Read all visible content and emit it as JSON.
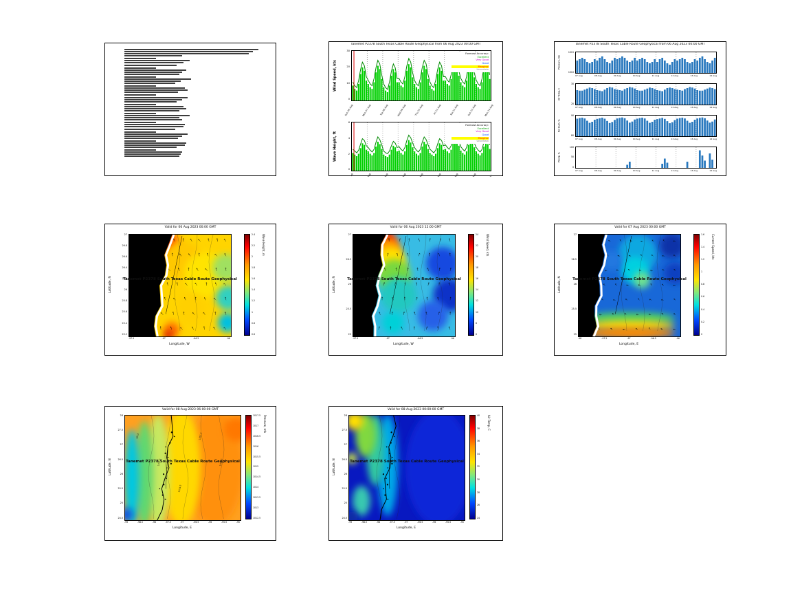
{
  "project_title": "Tanemet P2378 South Texas Cable Route Geophysical",
  "report": {
    "line_groups": [
      [
        0.93,
        0.89,
        0.86,
        0.4
      ],
      [
        0.22,
        0.45,
        0.41,
        0.36
      ],
      [
        0.22,
        0.43,
        0.4,
        0.38
      ],
      [
        0.22,
        0.46,
        0.39,
        0.35
      ],
      [
        0.22,
        0.42,
        0.44,
        0.37
      ],
      [
        0.22,
        0.44,
        0.4,
        0.36
      ],
      [
        0.22,
        0.41,
        0.43,
        0.38
      ],
      [
        0.22,
        0.45,
        0.38,
        0.4
      ],
      [
        0.22,
        0.42,
        0.41,
        0.35
      ],
      [
        0.22,
        0.44,
        0.4,
        0.37
      ],
      [
        0.22,
        0.43,
        0.42,
        0.36
      ],
      [
        0.22,
        0.4,
        0.39,
        0.38
      ]
    ]
  },
  "timeseries": {
    "title": "Tanemet P2378 South Texas Cable Route Geophysical from 06 Aug 2023 00:00 GMT",
    "legend_title": "Forecast Accuracy:",
    "legend_items": [
      {
        "label": "Excellent",
        "color": "#00a000"
      },
      {
        "label": "Very Good",
        "color": "#cc00cc"
      },
      {
        "label": "Good",
        "color": "#0055ff"
      },
      {
        "label": "Marginal",
        "color": "#ff0000",
        "bg": "#ffff00"
      },
      {
        "label": "Uncertain",
        "color": "#7f7f7f"
      }
    ],
    "day_labels": [
      "Sun 06 Aug",
      "Mon 07 Aug",
      "Tue 08 Aug",
      "Wed 09 Aug",
      "Thu 10 Aug",
      "Fri 11 Aug",
      "Sat 12 Aug",
      "Sun 13 Aug",
      "Mon 14 Aug"
    ]
  },
  "daily": {
    "title": "Tanemet P2378 South Texas Cable Route Geophysical from 06 Aug 2023 00:00 GMT",
    "day_labels": [
      "07 Aug",
      "08 Aug",
      "09 Aug",
      "10 Aug",
      "11 Aug",
      "12 Aug",
      "13 Aug",
      "14 Aug"
    ]
  },
  "chart_data": [
    {
      "id": "wind_speed",
      "type": "bar",
      "ylabel": "Wind Speed, kts",
      "ylim": [
        0,
        30
      ],
      "yticks": [
        "30",
        "20",
        "10",
        "0"
      ],
      "color": "#00d000",
      "values": [
        9,
        7,
        6,
        10,
        16,
        20,
        18,
        12,
        10,
        8,
        7,
        11,
        17,
        21,
        19,
        13,
        8,
        6,
        5,
        9,
        15,
        19,
        17,
        11,
        11,
        9,
        8,
        12,
        18,
        22,
        20,
        14,
        10,
        8,
        7,
        11,
        17,
        21,
        19,
        13,
        9,
        7,
        6,
        10,
        16,
        20,
        18,
        12,
        12,
        10,
        9,
        13,
        19,
        23,
        21,
        15,
        11,
        9,
        8,
        12,
        18,
        22,
        20,
        14,
        10,
        8,
        7,
        11,
        17,
        21,
        19,
        13
      ]
    },
    {
      "id": "wave_height",
      "type": "bar",
      "ylabel": "Wave Height, ft",
      "ylim": [
        0,
        6
      ],
      "yticks": [
        "6",
        "4",
        "2",
        "0"
      ],
      "color": "#00d000",
      "values": [
        2.2,
        2.0,
        1.8,
        2.1,
        2.8,
        3.4,
        3.2,
        2.6,
        2.4,
        2.1,
        1.9,
        2.2,
        3.0,
        3.6,
        3.3,
        2.7,
        2.0,
        1.8,
        1.7,
        2.0,
        2.6,
        3.1,
        2.9,
        2.4,
        2.5,
        2.2,
        2.0,
        2.4,
        3.2,
        3.8,
        3.5,
        2.9,
        2.4,
        2.1,
        1.9,
        2.2,
        3.0,
        3.6,
        3.3,
        2.7,
        2.2,
        2.0,
        1.8,
        2.1,
        2.8,
        3.4,
        3.2,
        2.6,
        2.7,
        2.4,
        2.2,
        2.6,
        3.4,
        4.1,
        3.8,
        3.1,
        2.5,
        2.2,
        2.0,
        2.4,
        3.2,
        3.8,
        3.5,
        2.9,
        2.4,
        2.1,
        1.9,
        2.2,
        3.0,
        3.6,
        3.3,
        2.7
      ]
    },
    {
      "id": "pressure",
      "type": "bar",
      "ylabel": "Pressure, mb",
      "ylim": [
        1005,
        1020
      ],
      "yticks": [
        "1015",
        "1010"
      ],
      "color": "#2878be",
      "values": [
        1014,
        1015,
        1016,
        1015,
        1013,
        1012,
        1013,
        1015,
        1014,
        1016,
        1017,
        1015,
        1013,
        1012,
        1014,
        1016,
        1015,
        1016,
        1017,
        1016,
        1014,
        1013,
        1014,
        1016,
        1014,
        1015,
        1016,
        1015,
        1013,
        1012,
        1013,
        1015,
        1013,
        1015,
        1016,
        1014,
        1012,
        1011,
        1013,
        1015,
        1014,
        1015,
        1016,
        1015,
        1013,
        1012,
        1013,
        1015,
        1014,
        1016,
        1017,
        1015,
        1013,
        1012,
        1014,
        1016
      ]
    },
    {
      "id": "air_temp",
      "type": "bar",
      "ylabel": "Air Temp, C",
      "ylim": [
        0,
        40
      ],
      "yticks": [
        "30",
        "20"
      ],
      "color": "#2878be",
      "values": [
        28,
        27,
        27,
        29,
        31,
        33,
        32,
        30,
        28,
        27,
        26,
        29,
        32,
        34,
        33,
        30,
        29,
        28,
        27,
        30,
        32,
        34,
        33,
        31,
        28,
        27,
        27,
        29,
        31,
        33,
        32,
        30,
        28,
        27,
        26,
        29,
        32,
        33,
        32,
        30,
        29,
        28,
        27,
        30,
        32,
        34,
        33,
        31,
        28,
        27,
        27,
        29,
        31,
        33,
        32,
        30
      ]
    },
    {
      "id": "rel_hum",
      "type": "bar",
      "ylabel": "Rel Hum, %",
      "ylim": [
        0,
        100
      ],
      "yticks": [
        "90",
        "80"
      ],
      "color": "#2878be",
      "values": [
        85,
        88,
        90,
        86,
        75,
        65,
        70,
        80,
        84,
        87,
        90,
        85,
        74,
        64,
        69,
        79,
        86,
        89,
        91,
        87,
        76,
        66,
        71,
        81,
        85,
        88,
        90,
        86,
        75,
        65,
        70,
        80,
        83,
        86,
        89,
        84,
        73,
        63,
        68,
        78,
        85,
        88,
        90,
        86,
        75,
        65,
        70,
        80,
        86,
        89,
        91,
        87,
        76,
        66,
        71,
        81
      ]
    },
    {
      "id": "precip",
      "type": "bar",
      "ylabel": "Precip, %",
      "ylim": [
        0,
        100
      ],
      "yticks": [
        "100",
        "50",
        "0"
      ],
      "color": "#2878be",
      "values": [
        0,
        0,
        0,
        0,
        0,
        0,
        0,
        0,
        0,
        0,
        0,
        0,
        0,
        0,
        0,
        0,
        0,
        0,
        0,
        0,
        15,
        30,
        0,
        0,
        0,
        0,
        0,
        0,
        0,
        0,
        0,
        0,
        0,
        0,
        20,
        45,
        25,
        0,
        0,
        0,
        0,
        0,
        0,
        0,
        30,
        0,
        0,
        0,
        0,
        85,
        60,
        35,
        0,
        70,
        40,
        0
      ]
    },
    {
      "id": "map_wave",
      "type": "heatmap",
      "title": "Valid for 06 Aug 2023 00:00 GMT",
      "xlabel": "Longitude, W",
      "ylabel": "Latitude, N",
      "xticks": [
        "-97.5",
        "-97",
        "-96.5",
        "-96"
      ],
      "yticks": [
        "27",
        "26.8",
        "26.6",
        "26.4",
        "26.2",
        "26",
        "25.8",
        "25.6",
        "25.4",
        "25.2"
      ],
      "colorbar": {
        "label": "Wave Height, m",
        "ticks": [
          "2.4",
          "2.2",
          "2",
          "1.8",
          "1.6",
          "1.4",
          "1.2",
          "1",
          "0.8",
          "0.6"
        ]
      },
      "overlay": "Tanemet P2378 South Texas Cable Route Geophysical"
    },
    {
      "id": "map_wind",
      "type": "heatmap",
      "title": "Valid for 06 Aug 2023 12:00 GMT",
      "xlabel": "Longitude, W",
      "ylabel": "Latitude, N",
      "xticks": [
        "-97.5",
        "-97",
        "-96.5",
        "-96"
      ],
      "yticks": [
        "27",
        "26.5",
        "26",
        "25.5",
        "25"
      ],
      "colorbar": {
        "label": "Wind Speed, kts",
        "ticks": [
          "24",
          "22",
          "20",
          "18",
          "16",
          "14",
          "12",
          "10",
          "8",
          "6"
        ]
      },
      "overlay": "Tanemet P2378 South Texas Cable Route Geophysical"
    },
    {
      "id": "map_current",
      "type": "heatmap",
      "title": "Valid for 07 Aug 2023 00:00 GMT",
      "xlabel": "Longitude, E",
      "ylabel": "Latitude, N",
      "xticks": [
        "-98",
        "-97.5",
        "-97",
        "-96.5",
        "-96"
      ],
      "yticks": [
        "27",
        "26.5",
        "26",
        "25.5",
        "25"
      ],
      "colorbar": {
        "label": "Current Speed, kts",
        "ticks": [
          "1.6",
          "1.4",
          "1.2",
          "1",
          "0.8",
          "0.6",
          "0.4",
          "0.2",
          "0"
        ]
      },
      "overlay": "Tanemet P2378 South Texas Cable Route Geophysical"
    },
    {
      "id": "map_pressure",
      "type": "heatmap",
      "title": "Valid for 08-Aug-2023 06:00:00 GMT",
      "xlabel": "Longitude, E",
      "ylabel": "Latitude, N",
      "xticks": [
        "-99",
        "-98.5",
        "-98",
        "-97.5",
        "-97",
        "-96.5",
        "-96",
        "-95.5",
        "-95"
      ],
      "yticks": [
        "28",
        "27.5",
        "27",
        "26.5",
        "26",
        "25.5",
        "25",
        "24.5"
      ],
      "colorbar": {
        "label": "Pressure, mb",
        "ticks": [
          "1017.5",
          "1017",
          "1016.5",
          "1016",
          "1015.5",
          "1015",
          "1014.5",
          "1014",
          "1013.5",
          "1013",
          "1012.5"
        ]
      },
      "contour_labels": [
        "1013",
        "1013.5",
        "1014.5",
        "1015.5",
        "1016.5"
      ],
      "overlay": "Tanemet P2378 South Texas Cable Route Geophysical"
    },
    {
      "id": "map_temp",
      "type": "heatmap",
      "title": "Valid for 08-Aug-2023 00:00:00 GMT",
      "xlabel": "Longitude, E",
      "ylabel": "Latitude, N",
      "xticks": [
        "-99",
        "-98.5",
        "-98",
        "-97.5",
        "-97",
        "-96.5",
        "-96",
        "-95.5",
        "-95"
      ],
      "yticks": [
        "28",
        "27.5",
        "27",
        "26.5",
        "26",
        "25.5",
        "25",
        "24.5"
      ],
      "colorbar": {
        "label": "Air Temp, C",
        "ticks": [
          "40",
          "38",
          "36",
          "34",
          "32",
          "30",
          "28",
          "26",
          "24"
        ]
      },
      "overlay": "Tanemet P2378 South Texas Cable Route Geophysical"
    }
  ]
}
